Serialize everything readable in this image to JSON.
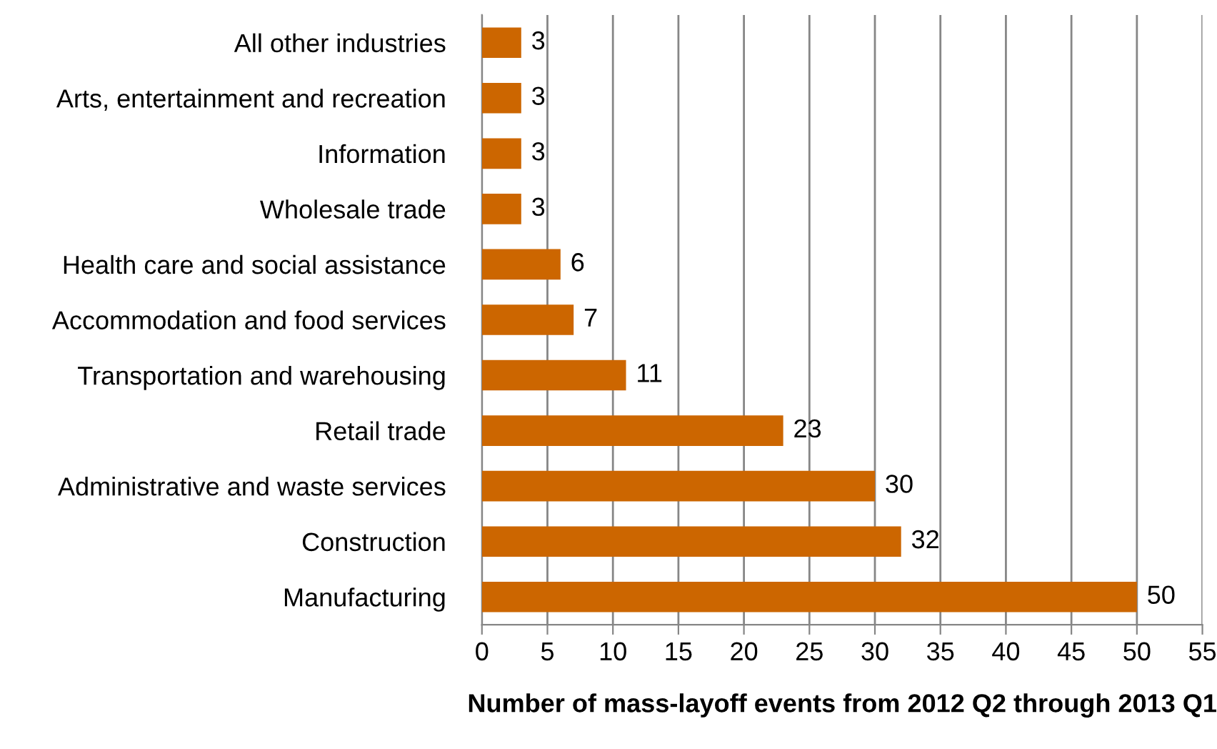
{
  "chart_data": {
    "type": "bar",
    "orientation": "horizontal",
    "categories": [
      "All other industries",
      "Arts, entertainment and recreation",
      "Information",
      "Wholesale trade",
      "Health care and social assistance",
      "Accommodation and food services",
      "Transportation and warehousing",
      "Retail trade",
      "Administrative and waste services",
      "Construction",
      "Manufacturing"
    ],
    "values": [
      3,
      3,
      3,
      3,
      6,
      7,
      11,
      23,
      30,
      32,
      50
    ],
    "color": "#cc6600",
    "xlabel": "Number of mass-layoff events from 2012 Q2 through 2013 Q1",
    "xlim": [
      0,
      55
    ],
    "xticks": [
      0,
      5,
      10,
      15,
      20,
      25,
      30,
      35,
      40,
      45,
      50,
      55
    ],
    "grid": "x",
    "data_labels": true,
    "legend": false
  }
}
